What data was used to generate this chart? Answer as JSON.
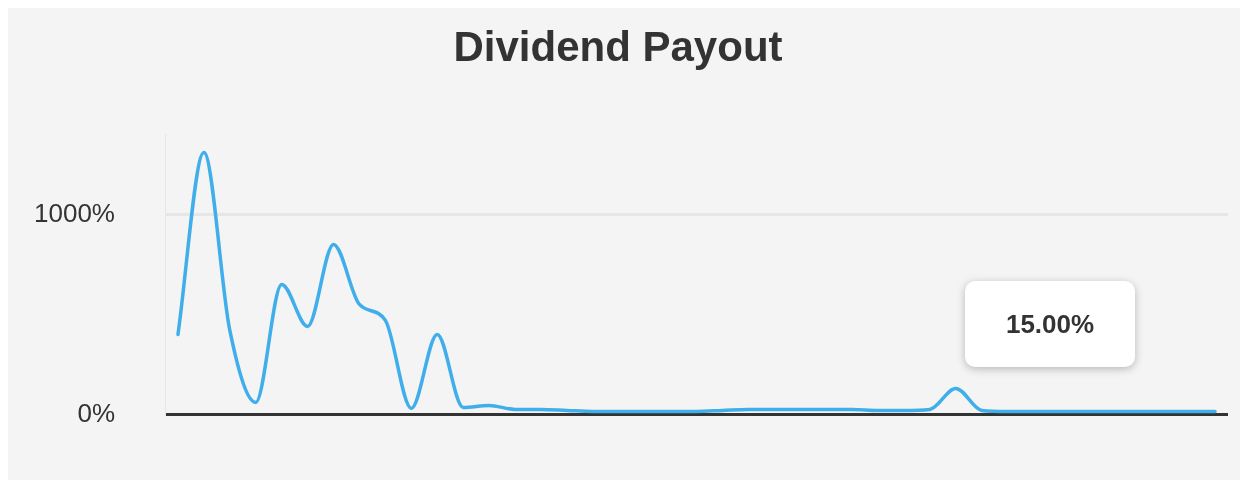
{
  "chart_data": {
    "type": "line",
    "title": "Dividend Payout",
    "categories": [
      null,
      null,
      null,
      null,
      null,
      null,
      null,
      null,
      null,
      null,
      null,
      null,
      null,
      null,
      null,
      null,
      null,
      null,
      null,
      null,
      null,
      null,
      null,
      null,
      null,
      null,
      null,
      null,
      null,
      null,
      null,
      null,
      null,
      null,
      null,
      null,
      null,
      null,
      null,
      null,
      null
    ],
    "series": [
      {
        "color": "#3faeea",
        "values": [
          400,
          1310,
          420,
          60,
          650,
          440,
          850,
          550,
          470,
          30,
          400,
          35,
          45,
          25,
          25,
          20,
          15,
          15,
          15,
          15,
          15,
          20,
          25,
          25,
          25,
          25,
          25,
          20,
          20,
          25,
          130,
          20,
          15,
          15,
          15,
          15,
          15,
          15,
          15,
          15,
          15
        ]
      }
    ],
    "ylim": [
      0,
      1400
    ],
    "yticks": [
      {
        "value": 0,
        "label": "0%"
      },
      {
        "value": 1000,
        "label": "1000%"
      }
    ],
    "grid": "y",
    "legend": false,
    "marker": "none",
    "line_style": "solid",
    "tick_labels": "y",
    "annotations": [
      "15.00%"
    ]
  }
}
